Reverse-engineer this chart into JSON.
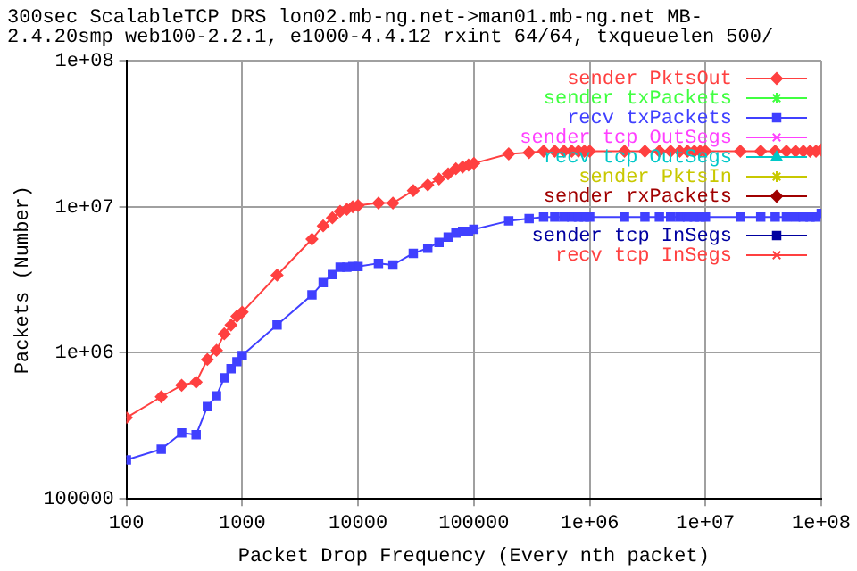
{
  "chart_data": {
    "type": "line",
    "title": [
      "300sec ScalableTCP DRS lon02.mb-ng.net->man01.mb-ng.net MB-",
      "2.4.20smp web100-2.2.1, e1000-4.4.12 rxint 64/64, txqueuelen 500/"
    ],
    "xlabel": "Packet Drop Frequency (Every nth packet)",
    "ylabel": "Packets (Number)",
    "log": "xy",
    "grid": true,
    "legend": "top right",
    "line_style": "solid",
    "xlim": [
      100,
      100000000
    ],
    "ylim": [
      100000,
      100000000
    ],
    "xticks": [
      100,
      1000,
      10000,
      100000,
      {
        "value": 1000000,
        "label": "1e+06"
      },
      {
        "value": 10000000,
        "label": "1e+07"
      },
      {
        "value": 100000000,
        "label": "1e+08"
      }
    ],
    "yticks": [
      100000,
      {
        "value": 1000000,
        "label": "1e+06"
      },
      {
        "value": 10000000,
        "label": "1e+07"
      },
      {
        "value": 100000000,
        "label": "1e+08"
      }
    ],
    "x": [
      100,
      200,
      300,
      400,
      500,
      600,
      700,
      800,
      900,
      1000,
      2000,
      4000,
      5000,
      6000,
      7000,
      8000,
      9000,
      10000,
      15000,
      20000,
      30000,
      40000,
      50000,
      60000,
      70000,
      80000,
      90000,
      100000,
      200000,
      300000,
      400000,
      500000,
      600000,
      700000,
      800000,
      900000,
      1000000,
      2000000,
      3000000,
      4000000,
      5000000,
      6000000,
      7000000,
      8000000,
      9000000,
      10000000,
      20000000,
      30000000,
      40000000,
      50000000,
      60000000,
      70000000,
      80000000,
      90000000,
      100000000
    ],
    "series": [
      {
        "name": "sender PktsOut",
        "color": "#ff4040",
        "marker": "diamond",
        "values": [
          360000,
          500000,
          600000,
          630000,
          900000,
          1040000,
          1350000,
          1550000,
          1780000,
          1900000,
          3400000,
          6000000,
          7400000,
          8400000,
          9300000,
          9600000,
          10000000,
          10200000,
          10600000,
          10600000,
          12900000,
          14100000,
          15500000,
          16800000,
          18200000,
          18700000,
          19300000,
          19800000,
          23000000,
          23500000,
          24000000,
          24000000,
          24000000,
          24000000,
          24000000,
          24000000,
          24000000,
          24000000,
          24000000,
          24000000,
          24000000,
          24000000,
          24000000,
          24000000,
          24000000,
          24000000,
          24000000,
          24000000,
          24000000,
          24000000,
          24000000,
          24000000,
          24000000,
          24000000,
          24500000
        ]
      },
      {
        "name": "sender txPackets",
        "color": "#40ff40",
        "marker": "star",
        "values": [
          null,
          null,
          null,
          null,
          null,
          null,
          null,
          null,
          null,
          null,
          null,
          null,
          null,
          null,
          null,
          null,
          null,
          null,
          null,
          null,
          null,
          null,
          null,
          null,
          null,
          null,
          null,
          null,
          null,
          null,
          null,
          null,
          null,
          null,
          null,
          null,
          null,
          null,
          null,
          null,
          null,
          null,
          null,
          null,
          null,
          null,
          null,
          null,
          null,
          null,
          null,
          null,
          null,
          null,
          null
        ]
      },
      {
        "name": "recv txPackets",
        "color": "#4040ff",
        "marker": "square",
        "values": [
          185000,
          219000,
          283000,
          275000,
          429000,
          508000,
          675000,
          780000,
          870000,
          960000,
          1550000,
          2490000,
          3030000,
          3430000,
          3850000,
          3850000,
          3900000,
          3900000,
          4100000,
          4000000,
          4800000,
          5200000,
          5700000,
          6200000,
          6600000,
          6800000,
          6800000,
          7000000,
          8000000,
          8300000,
          8500000,
          8500000,
          8500000,
          8500000,
          8500000,
          8500000,
          8500000,
          8500000,
          8500000,
          8500000,
          8500000,
          8500000,
          8500000,
          8500000,
          8500000,
          8500000,
          8500000,
          8500000,
          8500000,
          8500000,
          8500000,
          8500000,
          8500000,
          8500000,
          9000000
        ]
      },
      {
        "name": "sender tcp OutSegs",
        "color": "#ff40ff",
        "marker": "cross",
        "values": [
          null,
          null,
          null,
          null,
          null,
          null,
          null,
          null,
          null,
          null,
          null,
          null,
          null,
          null,
          null,
          null,
          null,
          null,
          null,
          null,
          null,
          null,
          null,
          null,
          null,
          null,
          null,
          null,
          null,
          null,
          null,
          null,
          null,
          null,
          null,
          null,
          null,
          null,
          null,
          null,
          null,
          null,
          null,
          null,
          null,
          null,
          null,
          null,
          null,
          null,
          null,
          null,
          null,
          null,
          null
        ]
      },
      {
        "name": "recv tcp OutSegs",
        "color": "#00c8c8",
        "marker": "triangle",
        "values": [
          null,
          null,
          null,
          null,
          null,
          null,
          null,
          null,
          null,
          null,
          null,
          null,
          null,
          null,
          null,
          null,
          null,
          null,
          null,
          null,
          null,
          null,
          null,
          null,
          null,
          null,
          null,
          null,
          null,
          null,
          null,
          null,
          null,
          null,
          null,
          null,
          null,
          null,
          null,
          null,
          null,
          null,
          null,
          null,
          null,
          null,
          null,
          null,
          null,
          null,
          null,
          null,
          null,
          null,
          null
        ]
      },
      {
        "name": "sender PktsIn",
        "color": "#c8c800",
        "marker": "star",
        "values": [
          null,
          null,
          null,
          null,
          null,
          null,
          null,
          null,
          null,
          null,
          null,
          null,
          null,
          null,
          null,
          null,
          null,
          null,
          null,
          null,
          null,
          null,
          null,
          null,
          null,
          null,
          null,
          null,
          null,
          null,
          null,
          null,
          null,
          null,
          null,
          null,
          null,
          null,
          null,
          null,
          null,
          null,
          null,
          null,
          null,
          null,
          null,
          null,
          null,
          null,
          null,
          null,
          null,
          null,
          null
        ]
      },
      {
        "name": "sender rxPackets",
        "color": "#a00000",
        "marker": "diamond",
        "values": [
          null,
          null,
          null,
          null,
          null,
          null,
          null,
          null,
          null,
          null,
          null,
          null,
          null,
          null,
          null,
          null,
          null,
          null,
          null,
          null,
          null,
          null,
          null,
          null,
          null,
          null,
          null,
          null,
          null,
          null,
          null,
          null,
          null,
          null,
          null,
          null,
          null,
          null,
          null,
          null,
          null,
          null,
          null,
          null,
          null,
          null,
          null,
          null,
          null,
          null,
          null,
          null,
          null,
          null,
          null
        ]
      },
      {
        "name": "sender tcp InSegs",
        "color": "#0000a0",
        "marker": "square",
        "values": [
          null,
          null,
          null,
          null,
          null,
          null,
          null,
          null,
          null,
          null,
          null,
          null,
          null,
          null,
          null,
          null,
          null,
          null,
          null,
          null,
          null,
          null,
          null,
          null,
          null,
          null,
          null,
          null,
          null,
          null,
          null,
          null,
          null,
          null,
          null,
          null,
          null,
          null,
          null,
          null,
          null,
          null,
          null,
          null,
          null,
          null,
          null,
          null,
          null,
          null,
          null,
          null,
          null,
          null,
          null
        ]
      },
      {
        "name": "recv tcp InSegs",
        "color": "#ff4040",
        "marker": "cross",
        "values": [
          null,
          null,
          null,
          null,
          null,
          null,
          null,
          null,
          null,
          null,
          null,
          null,
          null,
          null,
          null,
          null,
          null,
          null,
          null,
          null,
          null,
          null,
          null,
          null,
          null,
          null,
          null,
          null,
          null,
          null,
          null,
          null,
          null,
          null,
          null,
          null,
          null,
          null,
          null,
          null,
          null,
          null,
          null,
          null,
          null,
          null,
          null,
          null,
          null,
          null,
          null,
          null,
          null,
          null,
          null
        ]
      }
    ]
  }
}
